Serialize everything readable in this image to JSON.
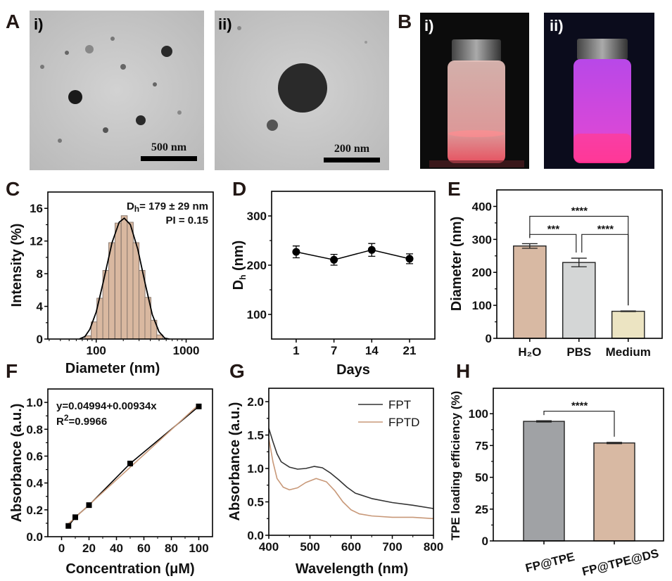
{
  "panels": {
    "A": "A",
    "B": "B",
    "C": "C",
    "D": "D",
    "E": "E",
    "F": "F",
    "G": "G",
    "H": "H"
  },
  "images": {
    "a_i": {
      "label": "i)",
      "scale_bar": "500 nm"
    },
    "a_ii": {
      "label": "ii)",
      "scale_bar": "200 nm"
    },
    "b_i": {
      "label": "i)"
    },
    "b_ii": {
      "label": "ii)"
    }
  },
  "chart_data": [
    {
      "id": "C",
      "type": "bar",
      "xscale": "log",
      "xlabel": "Diameter (nm)",
      "ylabel": "Intensity (%)",
      "xlim": [
        29,
        2000
      ],
      "ylim": [
        0,
        18
      ],
      "xticks": [
        100,
        1000
      ],
      "yticks": [
        0,
        4,
        8,
        12,
        16
      ],
      "bin_centers": [
        81,
        95,
        110,
        128,
        149,
        175,
        205,
        239,
        277,
        323,
        376,
        437,
        509
      ],
      "values": [
        0.4,
        2.1,
        5.0,
        8.4,
        11.8,
        14.2,
        15.1,
        14.3,
        11.8,
        8.4,
        5.1,
        2.3,
        0.5
      ],
      "fit_curve": {
        "x": [
          65,
          75,
          85,
          100,
          120,
          150,
          180,
          205,
          240,
          290,
          350,
          420,
          500,
          580,
          650
        ],
        "y": [
          0,
          0.3,
          1.2,
          3.3,
          7,
          11.8,
          14.3,
          14.8,
          14,
          11,
          6.8,
          3,
          0.9,
          0.1,
          0
        ]
      },
      "annotation": {
        "d": "D",
        "h": "h",
        "rest": "= 179 ± 29 nm",
        "pi": "PI = 0.15"
      },
      "bar_color": "#d9b8a0",
      "grid": false
    },
    {
      "id": "D",
      "type": "line",
      "xlabel": "Days",
      "ylabel_main": "D",
      "ylabel_sub": "h",
      "ylabel_rest": " (nm)",
      "categories": [
        "1",
        "7",
        "14",
        "21"
      ],
      "values": [
        227,
        211,
        231,
        213
      ],
      "errors": [
        12,
        11,
        13,
        10
      ],
      "ylim": [
        50,
        350
      ],
      "yticks": [
        100,
        200,
        300
      ],
      "grid": false
    },
    {
      "id": "E",
      "type": "bar",
      "ylabel": "Diameter (nm)",
      "categories": [
        "H₂O",
        "PBS",
        "Medium"
      ],
      "values": [
        280,
        230,
        82
      ],
      "errors": [
        7,
        13,
        1
      ],
      "colors": [
        "#d8b9a3",
        "#d4d6d6",
        "#ece4c2"
      ],
      "ylim": [
        0,
        450
      ],
      "yticks": [
        0,
        100,
        200,
        300,
        400
      ],
      "significance": [
        {
          "from": 0,
          "to": 2,
          "level": 370,
          "label": "****"
        },
        {
          "from": 0,
          "to": 1,
          "level": 315,
          "label": "***"
        },
        {
          "from": 1,
          "to": 2,
          "level": 315,
          "label": "****"
        }
      ],
      "grid": false
    },
    {
      "id": "F",
      "type": "scatter",
      "xlabel": "Concentration (μM)",
      "ylabel": "Absorbance (a.u.)",
      "x": [
        5,
        10,
        20,
        50,
        100
      ],
      "y": [
        0.08,
        0.145,
        0.235,
        0.545,
        0.97
      ],
      "fit": {
        "intercept": 0.04994,
        "slope": 0.00934,
        "color": "#c89878"
      },
      "equation": "y=0.04994+0.00934x",
      "r2_main": "R",
      "r2_sup": "2",
      "r2_rest": "=0.9966",
      "xlim": [
        -10,
        110
      ],
      "ylim": [
        0,
        1.1
      ],
      "xticks": [
        0,
        20,
        40,
        60,
        80,
        100
      ],
      "yticks": [
        0,
        0.2,
        0.4,
        0.6,
        0.8,
        1.0
      ],
      "grid": false
    },
    {
      "id": "G",
      "type": "line",
      "xlabel": "Wavelength (nm)",
      "ylabel": "Absorbance (a.u.)",
      "xlim": [
        400,
        800
      ],
      "ylim": [
        0,
        2.2
      ],
      "xticks": [
        400,
        500,
        600,
        700,
        800
      ],
      "yticks": [
        0,
        0.5,
        1.0,
        1.5,
        2.0
      ],
      "legend_position": "top-right",
      "series": [
        {
          "name": "FPT",
          "color": "#333333",
          "x": [
            400,
            410,
            420,
            430,
            450,
            470,
            490,
            510,
            530,
            550,
            570,
            590,
            610,
            650,
            700,
            750,
            800
          ],
          "y": [
            1.6,
            1.4,
            1.22,
            1.1,
            1.02,
            0.99,
            1.0,
            1.03,
            1.01,
            0.93,
            0.83,
            0.72,
            0.63,
            0.55,
            0.49,
            0.45,
            0.4
          ]
        },
        {
          "name": "FPTD",
          "color": "#c89878",
          "x": [
            400,
            410,
            420,
            435,
            450,
            470,
            490,
            515,
            540,
            560,
            580,
            600,
            620,
            650,
            700,
            750,
            800
          ],
          "y": [
            1.45,
            1.1,
            0.85,
            0.72,
            0.68,
            0.71,
            0.79,
            0.85,
            0.8,
            0.67,
            0.5,
            0.38,
            0.32,
            0.29,
            0.27,
            0.27,
            0.25
          ]
        }
      ],
      "grid": false
    },
    {
      "id": "H",
      "type": "bar",
      "ylabel": "TPE loading efficiency (%)",
      "categories": [
        "FP@TPE",
        "FP@TPE@DS"
      ],
      "values": [
        94,
        77
      ],
      "errors": [
        0.5,
        0.5
      ],
      "colors": [
        "#a0a2a5",
        "#d8b9a3"
      ],
      "ylim": [
        0,
        120
      ],
      "yticks": [
        0,
        25,
        50,
        75,
        100
      ],
      "significance": [
        {
          "from": 0,
          "to": 1,
          "level": 102,
          "label": "****"
        }
      ],
      "grid": false
    }
  ]
}
